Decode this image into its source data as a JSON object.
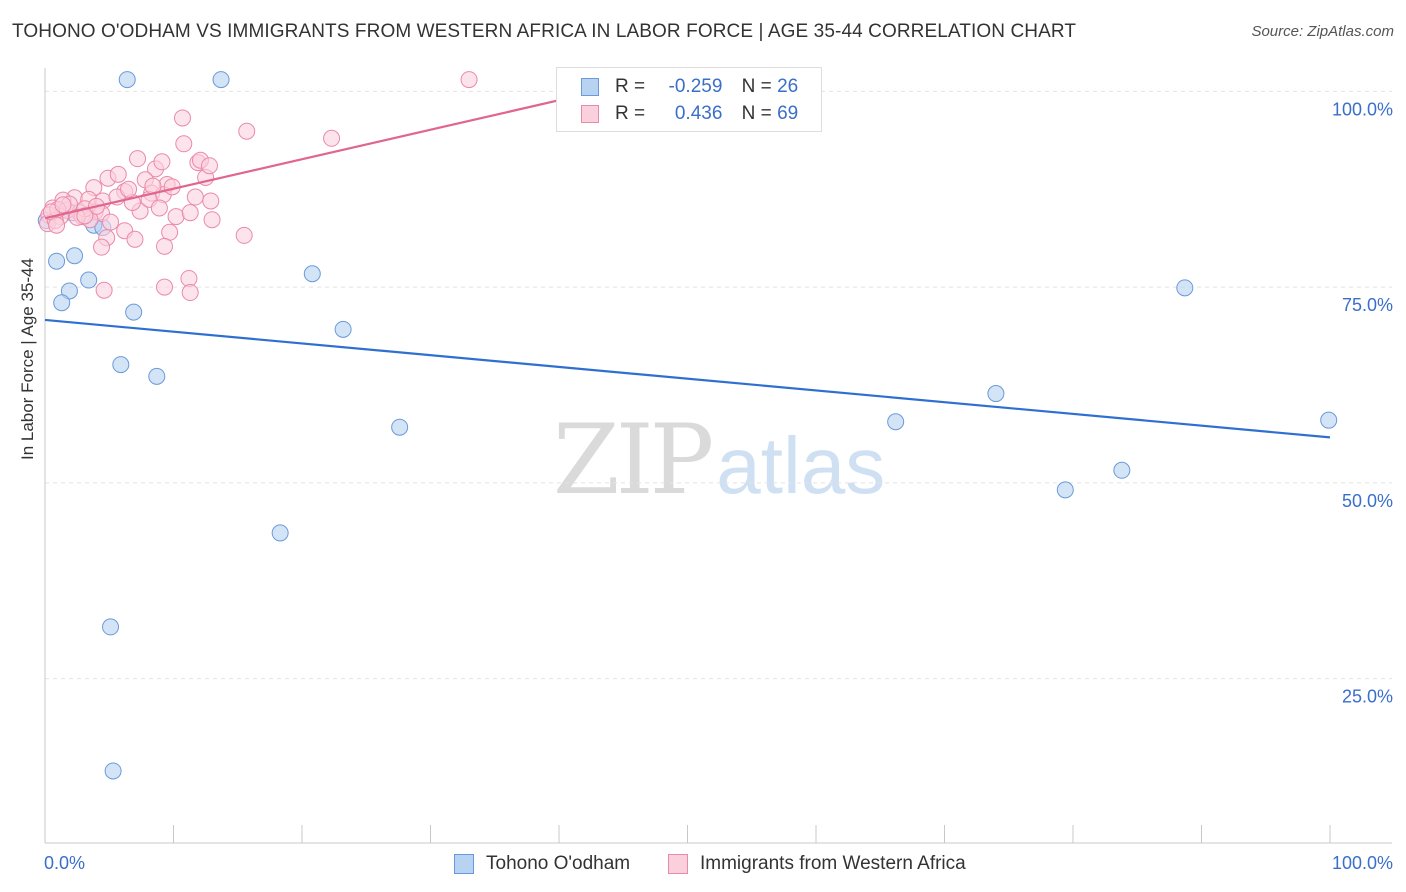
{
  "title": "TOHONO O'ODHAM VS IMMIGRANTS FROM WESTERN AFRICA IN LABOR FORCE | AGE 35-44 CORRELATION CHART",
  "source": "Source: ZipAtlas.com",
  "watermark": {
    "zip": "ZIP",
    "atlas": "atlas"
  },
  "legend": {
    "rows": [
      {
        "r_label": "R =",
        "r_value": "-0.259",
        "n_label": "N =",
        "n_value": "26",
        "color": "#a9c8f0",
        "border": "#6a9ad8"
      },
      {
        "r_label": "R =",
        "r_value": "0.436",
        "n_label": "N =",
        "n_value": "69",
        "color": "#f9c0d2",
        "border": "#ea8aab"
      }
    ]
  },
  "bottom_legend": [
    {
      "label": "Tohono O'odham",
      "color": "#b8d2f2",
      "border": "#6a9ad8"
    },
    {
      "label": "Immigrants from Western Africa",
      "color": "#fbd0dd",
      "border": "#ea8aab"
    }
  ],
  "chart_data": {
    "type": "scatter",
    "title": "TOHONO O'ODHAM VS IMMIGRANTS FROM WESTERN AFRICA IN LABOR FORCE | AGE 35-44 CORRELATION CHART",
    "xlabel": "",
    "ylabel": "In Labor Force | Age 35-44",
    "x_tick_labels": [
      "0.0%",
      "100.0%"
    ],
    "y_tick_labels": [
      "100.0%",
      "75.0%",
      "50.0%",
      "25.0%"
    ],
    "xlim": [
      0,
      100
    ],
    "ylim": [
      4,
      104
    ],
    "y_ticks": [
      100,
      75,
      50,
      25
    ],
    "grid": "horizontal dashed",
    "series": [
      {
        "name": "Tohono O'odham",
        "color": "#6a9ad8",
        "fill": "#b8d2f2",
        "trend_color": "#2f6fd0",
        "trend": {
          "x0": 0,
          "y0": 70.8,
          "x1": 100,
          "y1": 55.8
        },
        "points": [
          [
            6.4,
            101.5
          ],
          [
            13.7,
            101.5
          ],
          [
            0.9,
            78.3
          ],
          [
            2.3,
            79.0
          ],
          [
            3.4,
            75.9
          ],
          [
            1.9,
            74.5
          ],
          [
            1.3,
            73.0
          ],
          [
            6.9,
            71.8
          ],
          [
            20.8,
            76.7
          ],
          [
            23.2,
            69.6
          ],
          [
            5.9,
            65.1
          ],
          [
            8.7,
            63.6
          ],
          [
            27.6,
            57.1
          ],
          [
            18.3,
            43.6
          ],
          [
            5.1,
            31.6
          ],
          [
            5.3,
            13.2
          ],
          [
            88.7,
            74.9
          ],
          [
            74.0,
            61.4
          ],
          [
            66.2,
            57.8
          ],
          [
            99.9,
            58.0
          ],
          [
            79.4,
            49.1
          ],
          [
            83.8,
            51.6
          ],
          [
            0.1,
            83.5
          ],
          [
            3.8,
            82.9
          ],
          [
            4.5,
            82.6
          ],
          [
            2.1,
            84.5
          ]
        ]
      },
      {
        "name": "Immigrants from Western Africa",
        "color": "#ea8aab",
        "fill": "#fbd0dd",
        "trend_color": "#e0668e",
        "trend": {
          "x0": 0,
          "y0": 83.8,
          "x1": 40.9,
          "y1": 99.2
        },
        "points": [
          [
            33.0,
            101.5
          ],
          [
            10.7,
            96.6
          ],
          [
            15.7,
            94.9
          ],
          [
            22.3,
            94.0
          ],
          [
            10.8,
            93.3
          ],
          [
            7.2,
            91.4
          ],
          [
            11.9,
            90.9
          ],
          [
            12.1,
            91.2
          ],
          [
            8.6,
            90.1
          ],
          [
            4.9,
            88.9
          ],
          [
            5.7,
            89.4
          ],
          [
            7.8,
            88.7
          ],
          [
            12.5,
            89.0
          ],
          [
            9.5,
            88.1
          ],
          [
            3.8,
            87.7
          ],
          [
            6.2,
            87.2
          ],
          [
            8.3,
            87.0
          ],
          [
            11.7,
            86.5
          ],
          [
            2.3,
            86.4
          ],
          [
            3.4,
            86.2
          ],
          [
            4.5,
            86.0
          ],
          [
            1.4,
            86.1
          ],
          [
            12.9,
            86.0
          ],
          [
            9.2,
            86.8
          ],
          [
            9.9,
            87.8
          ],
          [
            0.6,
            85.1
          ],
          [
            1.7,
            84.8
          ],
          [
            2.7,
            84.5
          ],
          [
            3.9,
            84.6
          ],
          [
            4.4,
            84.4
          ],
          [
            0.3,
            84.2
          ],
          [
            1.2,
            84.0
          ],
          [
            2.9,
            84.0
          ],
          [
            3.5,
            83.6
          ],
          [
            5.1,
            83.3
          ],
          [
            7.4,
            84.7
          ],
          [
            10.2,
            84.0
          ],
          [
            13.0,
            83.6
          ],
          [
            6.2,
            82.2
          ],
          [
            4.8,
            81.3
          ],
          [
            7.0,
            81.1
          ],
          [
            9.7,
            82.0
          ],
          [
            15.5,
            81.6
          ],
          [
            4.4,
            80.1
          ],
          [
            9.3,
            80.2
          ],
          [
            0.2,
            83.1
          ],
          [
            0.8,
            83.5
          ],
          [
            1.9,
            85.6
          ],
          [
            3.1,
            85.0
          ],
          [
            4.0,
            85.3
          ],
          [
            6.8,
            85.8
          ],
          [
            8.1,
            86.2
          ],
          [
            8.9,
            85.1
          ],
          [
            11.3,
            84.5
          ],
          [
            1.0,
            84.9
          ],
          [
            2.5,
            83.9
          ],
          [
            5.6,
            86.5
          ],
          [
            6.5,
            87.5
          ],
          [
            8.4,
            87.9
          ],
          [
            9.1,
            91.0
          ],
          [
            12.8,
            90.5
          ],
          [
            3.1,
            84.1
          ],
          [
            4.6,
            74.6
          ],
          [
            9.3,
            75.0
          ],
          [
            11.2,
            76.1
          ],
          [
            11.3,
            74.3
          ],
          [
            0.5,
            84.6
          ],
          [
            1.4,
            85.5
          ],
          [
            0.9,
            82.9
          ]
        ]
      }
    ]
  }
}
